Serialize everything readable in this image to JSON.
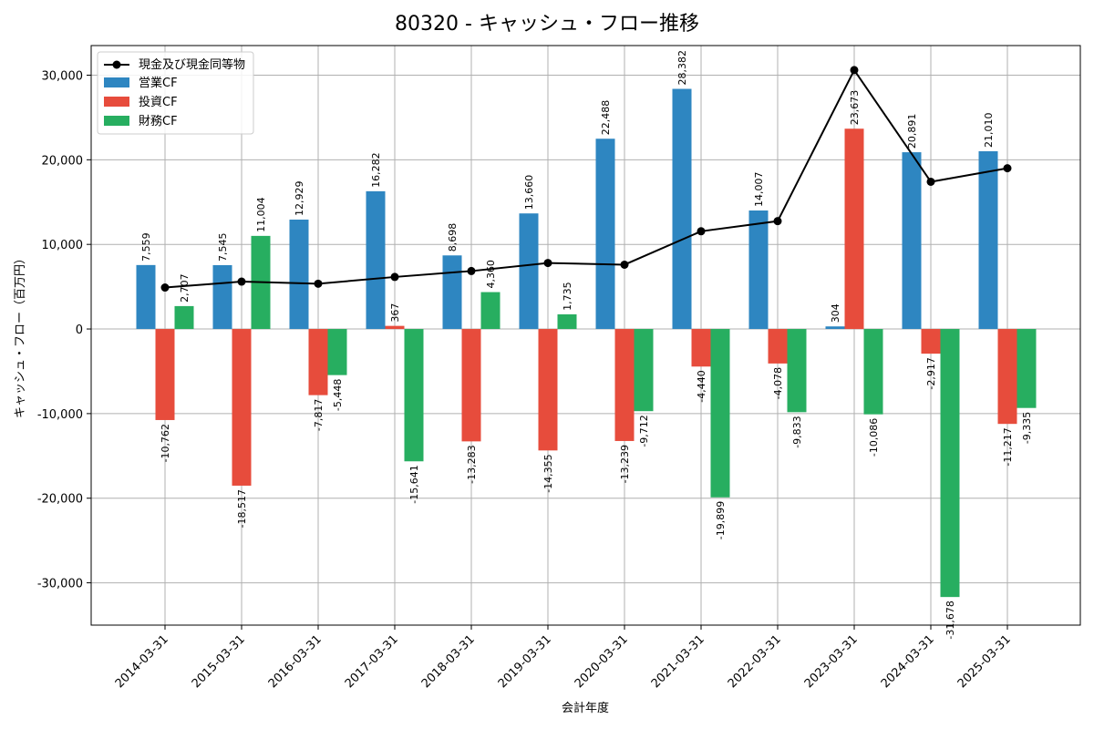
{
  "chart_data": {
    "type": "bar",
    "title": "80320 - キャッシュ・フロー推移",
    "xlabel": "会計年度",
    "ylabel": "キャッシュ・フロー（百万円）",
    "ylim": [
      -35000,
      33500
    ],
    "yticks": [
      -30000,
      -20000,
      -10000,
      0,
      10000,
      20000,
      30000
    ],
    "ytick_labels": [
      "-30,000",
      "-20,000",
      "-10,000",
      "0",
      "10,000",
      "20,000",
      "30,000"
    ],
    "grid": true,
    "legend_position": "top-left",
    "categories": [
      "2014-03-31",
      "2015-03-31",
      "2016-03-31",
      "2017-03-31",
      "2018-03-31",
      "2019-03-31",
      "2020-03-31",
      "2021-03-31",
      "2022-03-31",
      "2023-03-31",
      "2024-03-31",
      "2025-03-31"
    ],
    "series": [
      {
        "name": "営業CF",
        "color": "#2e86c1",
        "values": [
          7559,
          7545,
          12929,
          16282,
          8698,
          13660,
          22488,
          28382,
          14007,
          304,
          20891,
          21010
        ],
        "labels": [
          "7,559",
          "7,545",
          "12,929",
          "16,282",
          "8,698",
          "13,660",
          "22,488",
          "28,382",
          "14,007",
          "304",
          "20,891",
          "21,010"
        ]
      },
      {
        "name": "投資CF",
        "color": "#e74c3c",
        "values": [
          -10762,
          -18517,
          -7817,
          367,
          -13283,
          -14355,
          -13239,
          -4440,
          -4078,
          23673,
          -2917,
          -11217
        ],
        "labels": [
          "-10,762",
          "-18,517",
          "-7,817",
          "367",
          "-13,283",
          "-14,355",
          "-13,239",
          "-4,440",
          "-4,078",
          "23,673",
          "-2,917",
          "-11,217"
        ]
      },
      {
        "name": "財務CF",
        "color": "#27ae60",
        "values": [
          2707,
          11004,
          -5448,
          -15641,
          4360,
          1735,
          -9712,
          -19899,
          -9833,
          -10086,
          -31678,
          -9335
        ],
        "labels": [
          "2,707",
          "11,004",
          "-5,448",
          "-15,641",
          "4,360",
          "1,735",
          "-9,712",
          "-19,899",
          "-9,833",
          "-10,086",
          "-31,678",
          "-9,335"
        ]
      }
    ],
    "line": {
      "name": "現金及び現金同等物",
      "color": "#000000",
      "values": [
        4900,
        5600,
        5350,
        6150,
        6850,
        7800,
        7600,
        11550,
        12750,
        30600,
        17400,
        19000
      ]
    }
  }
}
